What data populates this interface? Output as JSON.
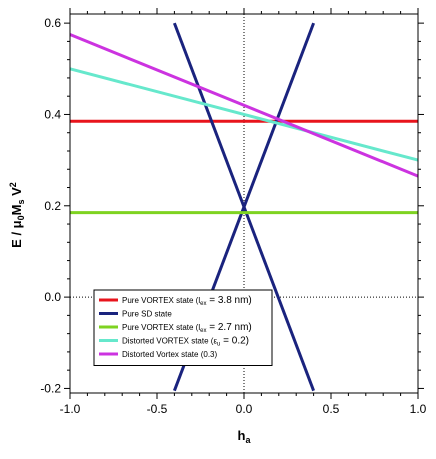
{
  "chart_data": {
    "type": "line",
    "xlabel": "h",
    "xlabel_sub": "a",
    "ylabel_parts": [
      "E / μ",
      "0",
      "M",
      "s",
      " V",
      "2"
    ],
    "xlim": [
      -1.0,
      1.0
    ],
    "ylim": [
      -0.21,
      0.62
    ],
    "x_ticks": [
      -1.0,
      -0.5,
      0.0,
      0.5,
      1.0
    ],
    "x_tick_labels": [
      "-1.0",
      "-0.5",
      "0.0",
      "0.5",
      "1.0"
    ],
    "y_ticks": [
      -0.2,
      0.0,
      0.2,
      0.4,
      0.6
    ],
    "y_tick_labels": [
      "-0.2",
      "0.0",
      "0.2",
      "0.4",
      "0.6"
    ],
    "reference_lines": {
      "x": 0.0,
      "y": 0.0,
      "style": "dotted"
    },
    "series": [
      {
        "name": "Pure VORTEX state (l",
        "legend_parts": [
          "Pure VORTEX state (l",
          "ex",
          " = 3.8 nm)"
        ],
        "color": "#e8141c",
        "x": [
          -1.0,
          1.0
        ],
        "y": [
          0.385,
          0.385
        ]
      },
      {
        "name": "Pure SD state (+)",
        "legend_parts": [
          "Pure SD state",
          "",
          ""
        ],
        "color": "#1a237e",
        "x": [
          -0.4,
          0.4
        ],
        "y": [
          -0.205,
          0.6
        ]
      },
      {
        "name": "Pure SD state (-)",
        "color": "#1a237e",
        "x": [
          -0.4,
          0.4
        ],
        "y": [
          0.6,
          -0.205
        ]
      },
      {
        "name": "Pure VORTEX state (l",
        "legend_parts": [
          "Pure VORTEX state (l",
          "ex",
          " = 2.7 nm)"
        ],
        "color": "#7ed321",
        "x": [
          -1.0,
          1.0
        ],
        "y": [
          0.185,
          0.185
        ]
      },
      {
        "name": "Distorted VORTEX state",
        "legend_parts": [
          "Distorted VORTEX state (ε",
          "u",
          " = 0.2)"
        ],
        "color": "#66e8cc",
        "x": [
          -1.0,
          1.0
        ],
        "y": [
          0.5,
          0.3
        ]
      },
      {
        "name": "Distorted Vortex state (0.3)",
        "legend_parts": [
          "Distorted Vortex state (0.3)",
          "",
          ""
        ],
        "color": "#cc33e0",
        "x": [
          -1.0,
          1.0
        ],
        "y": [
          0.575,
          0.265
        ]
      }
    ],
    "legend_placement": "bottom-left",
    "grid": false
  }
}
